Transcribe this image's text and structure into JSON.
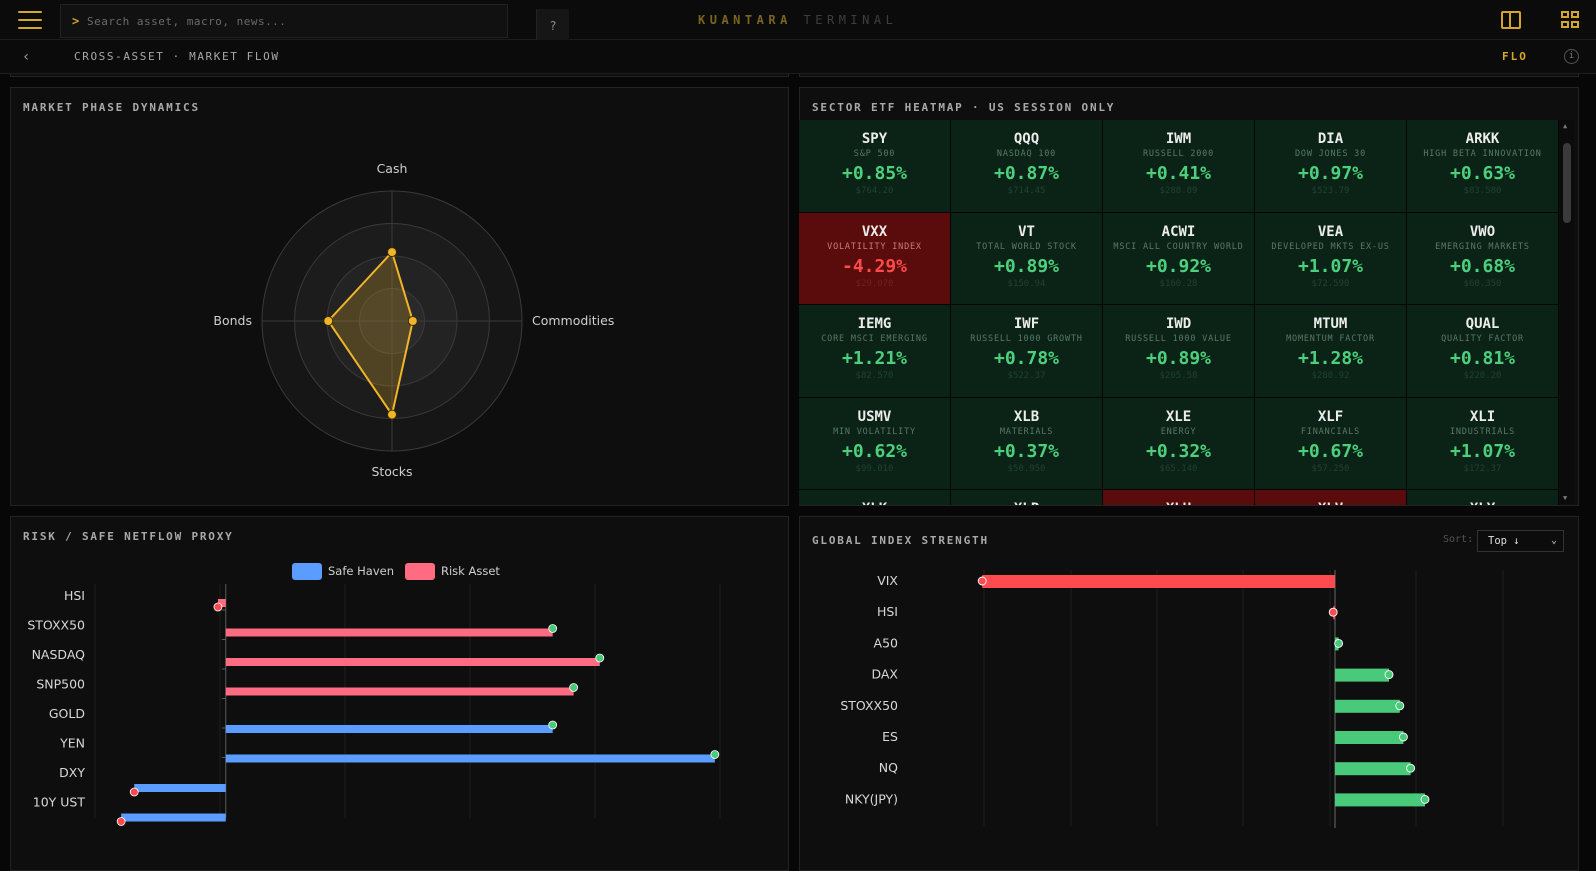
{
  "header": {
    "search_placeholder": "Search asset, macro, news...",
    "search_prompt": ">",
    "help_label": "?",
    "brand_primary": "KUANTARA",
    "brand_secondary": "TERMINAL",
    "accent_color": "#d4a72c"
  },
  "subheader": {
    "breadcrumb": "CROSS-ASSET · MARKET FLOW",
    "mode": "FLO",
    "back_icon": "chevron-left-icon",
    "info_icon": "info-icon"
  },
  "phase_panel": {
    "title": "MARKET PHASE DYNAMICS",
    "chart_data": {
      "type": "radar",
      "axes": [
        "Cash",
        "Commodities",
        "Stocks",
        "Bonds"
      ],
      "values": [
        0.53,
        0.16,
        0.72,
        0.49
      ],
      "range": [
        0,
        1
      ],
      "rings": 4,
      "color": "#f0b429"
    }
  },
  "heatmap_panel": {
    "title": "SECTOR ETF HEATMAP · US SESSION ONLY",
    "cells": [
      {
        "ticker": "SPY",
        "name": "S&P 500",
        "change": "+0.85%",
        "price": "$764.20",
        "negative": false
      },
      {
        "ticker": "QQQ",
        "name": "NASDAQ 100",
        "change": "+0.87%",
        "price": "$714.45",
        "negative": false
      },
      {
        "ticker": "IWM",
        "name": "RUSSELL 2000",
        "change": "+0.41%",
        "price": "$288.89",
        "negative": false
      },
      {
        "ticker": "DIA",
        "name": "DOW JONES 30",
        "change": "+0.97%",
        "price": "$523.79",
        "negative": false
      },
      {
        "ticker": "ARKK",
        "name": "HIGH BETA INNOVATION",
        "change": "+0.63%",
        "price": "$83.580",
        "negative": false
      },
      {
        "ticker": "VXX",
        "name": "VOLATILITY INDEX",
        "change": "-4.29%",
        "price": "$29.070",
        "negative": true
      },
      {
        "ticker": "VT",
        "name": "TOTAL WORLD STOCK",
        "change": "+0.89%",
        "price": "$150.94",
        "negative": false
      },
      {
        "ticker": "ACWI",
        "name": "MSCI ALL COUNTRY WORLD",
        "change": "+0.92%",
        "price": "$160.28",
        "negative": false
      },
      {
        "ticker": "VEA",
        "name": "DEVELOPED MKTS EX-US",
        "change": "+1.07%",
        "price": "$72.590",
        "negative": false
      },
      {
        "ticker": "VWO",
        "name": "EMERGING MARKETS",
        "change": "+0.68%",
        "price": "$60.350",
        "negative": false
      },
      {
        "ticker": "IEMG",
        "name": "CORE MSCI EMERGING",
        "change": "+1.21%",
        "price": "$82.570",
        "negative": false
      },
      {
        "ticker": "IWF",
        "name": "RUSSELL 1000 GROWTH",
        "change": "+0.78%",
        "price": "$522.37",
        "negative": false
      },
      {
        "ticker": "IWD",
        "name": "RUSSELL 1000 VALUE",
        "change": "+0.89%",
        "price": "$205.58",
        "negative": false
      },
      {
        "ticker": "MTUM",
        "name": "MOMENTUM FACTOR",
        "change": "+1.28%",
        "price": "$280.92",
        "negative": false
      },
      {
        "ticker": "QUAL",
        "name": "QUALITY FACTOR",
        "change": "+0.81%",
        "price": "$220.20",
        "negative": false
      },
      {
        "ticker": "USMV",
        "name": "MIN VOLATILITY",
        "change": "+0.62%",
        "price": "$99.010",
        "negative": false
      },
      {
        "ticker": "XLB",
        "name": "MATERIALS",
        "change": "+0.37%",
        "price": "$50.950",
        "negative": false
      },
      {
        "ticker": "XLE",
        "name": "ENERGY",
        "change": "+0.32%",
        "price": "$65.140",
        "negative": false
      },
      {
        "ticker": "XLF",
        "name": "FINANCIALS",
        "change": "+0.67%",
        "price": "$57.250",
        "negative": false
      },
      {
        "ticker": "XLI",
        "name": "INDUSTRIALS",
        "change": "+1.07%",
        "price": "$172.37",
        "negative": false
      },
      {
        "ticker": "XLK",
        "name": "",
        "change": "",
        "price": "",
        "negative": false
      },
      {
        "ticker": "XLP",
        "name": "",
        "change": "",
        "price": "",
        "negative": false
      },
      {
        "ticker": "XLU",
        "name": "",
        "change": "",
        "price": "",
        "negative": true
      },
      {
        "ticker": "XLV",
        "name": "",
        "change": "",
        "price": "",
        "negative": true
      },
      {
        "ticker": "XLY",
        "name": "",
        "change": "",
        "price": "",
        "negative": false
      }
    ]
  },
  "netflow_panel": {
    "title": "RISK / SAFE NETFLOW PROXY",
    "legend": [
      {
        "name": "Safe Haven",
        "color": "#5a9cff"
      },
      {
        "name": "Risk Asset",
        "color": "#ff6b81"
      }
    ],
    "chart_data": {
      "type": "bar",
      "orientation": "horizontal",
      "categories": [
        "HSI",
        "STOXX50",
        "NASDAQ",
        "SNP500",
        "GOLD",
        "YEN",
        "DXY",
        "10Y UST"
      ],
      "series": [
        {
          "name": "Risk Asset",
          "values": [
            -0.3,
            12.5,
            14.3,
            13.3,
            null,
            null,
            null,
            null
          ]
        },
        {
          "name": "Safe Haven",
          "values": [
            null,
            null,
            null,
            null,
            12.5,
            18.7,
            -3.5,
            -4.0
          ]
        }
      ],
      "xlim": [
        -5,
        21
      ]
    }
  },
  "strength_panel": {
    "title": "GLOBAL INDEX STRENGTH",
    "sort_label": "Sort:",
    "sort_value": "Top ↓",
    "chart_data": {
      "type": "bar",
      "orientation": "horizontal",
      "categories": [
        "VIX",
        "HSI",
        "A50",
        "DAX",
        "STOXX50",
        "ES",
        "NQ",
        "NKY(JPY)"
      ],
      "values": [
        -9.8,
        -0.05,
        0.1,
        1.5,
        1.8,
        1.9,
        2.1,
        2.5
      ],
      "xlim": [
        -10,
        6
      ],
      "positive_color": "#49c97a",
      "negative_color": "#ff4a4f"
    }
  }
}
